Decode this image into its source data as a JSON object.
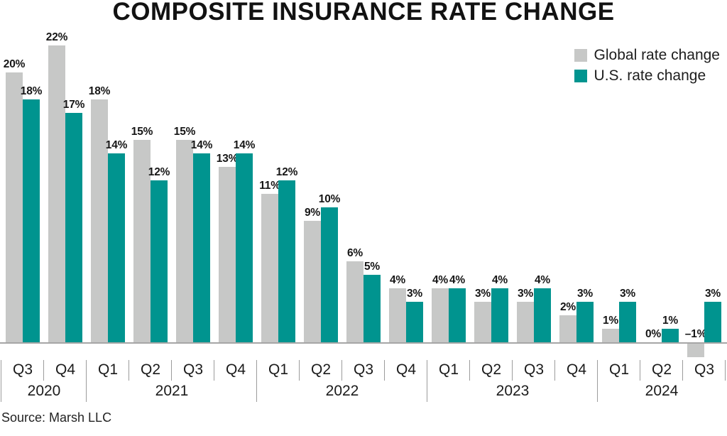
{
  "title": "COMPOSITE INSURANCE RATE CHANGE",
  "source": "Source: Marsh LLC",
  "legend": {
    "items": [
      {
        "label": "Global rate change",
        "color": "#c7c8c7"
      },
      {
        "label": "U.S. rate change",
        "color": "#00948f"
      }
    ]
  },
  "colors": {
    "global_bar": "#c7c8c7",
    "us_bar": "#00948f",
    "axis_line": "#a6a6a6",
    "separator": "#9c9c9c",
    "text": "#161616"
  },
  "chart_data": {
    "type": "bar",
    "title": "COMPOSITE INSURANCE RATE CHANGE",
    "xlabel": "",
    "ylabel": "",
    "value_suffix": "%",
    "ylim": [
      -2,
      24
    ],
    "grid": false,
    "legend_position": "top-right",
    "categories": [
      "Q3",
      "Q4",
      "Q1",
      "Q2",
      "Q3",
      "Q4",
      "Q1",
      "Q2",
      "Q3",
      "Q4",
      "Q1",
      "Q2",
      "Q3",
      "Q4",
      "Q1",
      "Q2",
      "Q3"
    ],
    "year_groups": [
      {
        "year": "2020",
        "count": 2
      },
      {
        "year": "2021",
        "count": 4
      },
      {
        "year": "2022",
        "count": 4
      },
      {
        "year": "2023",
        "count": 4
      },
      {
        "year": "2024",
        "count": 3
      }
    ],
    "series": [
      {
        "name": "Global rate change",
        "color": "#c7c8c7",
        "values": [
          20,
          22,
          18,
          15,
          15,
          13,
          11,
          9,
          6,
          4,
          4,
          3,
          3,
          2,
          1,
          0,
          -1
        ]
      },
      {
        "name": "U.S. rate change",
        "color": "#00948f",
        "values": [
          18,
          17,
          14,
          12,
          14,
          14,
          12,
          10,
          5,
          3,
          4,
          4,
          4,
          3,
          3,
          1,
          3
        ]
      }
    ],
    "source": "Source: Marsh LLC"
  }
}
